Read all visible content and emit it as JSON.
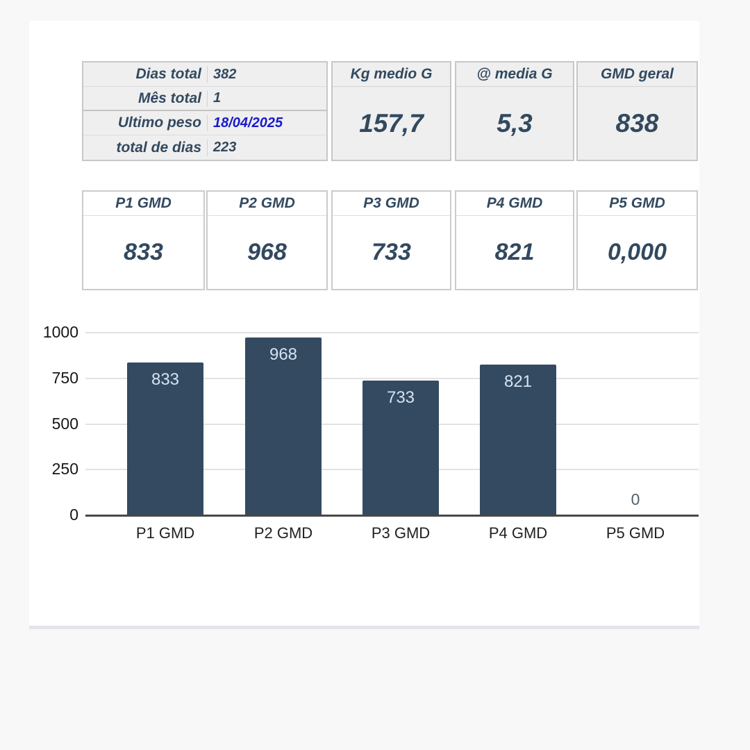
{
  "summary_table": {
    "rows": [
      {
        "label": "Dias total",
        "value": "382"
      },
      {
        "label": "Mês total",
        "value": "1"
      },
      {
        "label": "Ultimo peso",
        "value": "18/04/2025"
      },
      {
        "label": "total de dias",
        "value": "223"
      }
    ],
    "highlight_row_index": 2
  },
  "stat_boxes": [
    {
      "label": "Kg medio G",
      "value": "157,7"
    },
    {
      "label": "@ media G",
      "value": "5,3"
    },
    {
      "label": "GMD geral",
      "value": "838"
    }
  ],
  "period_boxes": [
    {
      "label": "P1 GMD",
      "value": "833"
    },
    {
      "label": "P2 GMD",
      "value": "968"
    },
    {
      "label": "P3 GMD",
      "value": "733"
    },
    {
      "label": "P4 GMD",
      "value": "821"
    },
    {
      "label": "P5 GMD",
      "value": "0,000"
    }
  ],
  "chart_data": {
    "type": "bar",
    "categories": [
      "P1 GMD",
      "P2 GMD",
      "P3 GMD",
      "P4 GMD",
      "P5 GMD"
    ],
    "values": [
      833,
      968,
      733,
      821,
      0
    ],
    "bar_labels": [
      "833",
      "968",
      "733",
      "821",
      "0"
    ],
    "y_ticks": [
      0,
      250,
      500,
      750,
      1000
    ],
    "ylim": [
      0,
      1000
    ],
    "grid": true,
    "legend": "none",
    "title": ""
  },
  "colors": {
    "bar": "#344a61",
    "bar_label": "#d5e3f2",
    "zero_label": "#55606a",
    "text_dark_slate": "#32495f",
    "date_blue": "#1a1acb",
    "cell_bg": "#efefef",
    "grid_line": "#e2e2e2",
    "axis_line": "#474747"
  }
}
